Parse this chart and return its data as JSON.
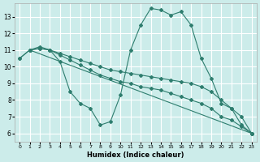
{
  "xlabel": "Humidex (Indice chaleur)",
  "background_color": "#ccecea",
  "grid_color": "#ffffff",
  "line_color": "#2e7d6e",
  "xlim": [
    -0.5,
    23.5
  ],
  "ylim": [
    5.5,
    13.8
  ],
  "yticks": [
    6,
    7,
    8,
    9,
    10,
    11,
    12,
    13
  ],
  "xticks": [
    0,
    1,
    2,
    3,
    4,
    5,
    6,
    7,
    8,
    9,
    10,
    11,
    12,
    13,
    14,
    15,
    16,
    17,
    18,
    19,
    20,
    21,
    22,
    23
  ],
  "series": [
    {
      "x": [
        0,
        1,
        2,
        3,
        4,
        5,
        6,
        7,
        8,
        9,
        10,
        11,
        12,
        13,
        14,
        15,
        16,
        17,
        18,
        19,
        20,
        21,
        22,
        23
      ],
      "y": [
        10.5,
        11.0,
        11.2,
        11.0,
        10.3,
        8.5,
        7.8,
        7.5,
        6.5,
        6.7,
        8.3,
        11.0,
        12.5,
        13.5,
        13.4,
        13.1,
        13.3,
        12.5,
        10.5,
        9.3,
        7.8,
        7.5,
        6.5,
        6.0
      ]
    },
    {
      "x": [
        0,
        1,
        2,
        3,
        4,
        5,
        6,
        7,
        8,
        9,
        10,
        11,
        12,
        13,
        14,
        15,
        16,
        17,
        18,
        19,
        20,
        21,
        22,
        23
      ],
      "y": [
        10.5,
        11.0,
        11.1,
        11.0,
        10.8,
        10.6,
        10.4,
        10.2,
        10.0,
        9.8,
        9.7,
        9.6,
        9.5,
        9.4,
        9.3,
        9.2,
        9.1,
        9.0,
        8.8,
        8.5,
        8.0,
        7.5,
        7.0,
        6.0
      ]
    },
    {
      "x": [
        1,
        2,
        3,
        4,
        5,
        6,
        7,
        8,
        9,
        10,
        11,
        12,
        13,
        14,
        15,
        16,
        17,
        18,
        19,
        20,
        21,
        22,
        23
      ],
      "y": [
        11.0,
        11.1,
        11.0,
        10.7,
        10.4,
        10.1,
        9.8,
        9.5,
        9.3,
        9.1,
        9.0,
        8.8,
        8.7,
        8.6,
        8.4,
        8.2,
        8.0,
        7.8,
        7.5,
        7.0,
        6.8,
        6.4,
        6.0
      ]
    },
    {
      "x": [
        1,
        23
      ],
      "y": [
        11.0,
        6.0
      ]
    }
  ]
}
